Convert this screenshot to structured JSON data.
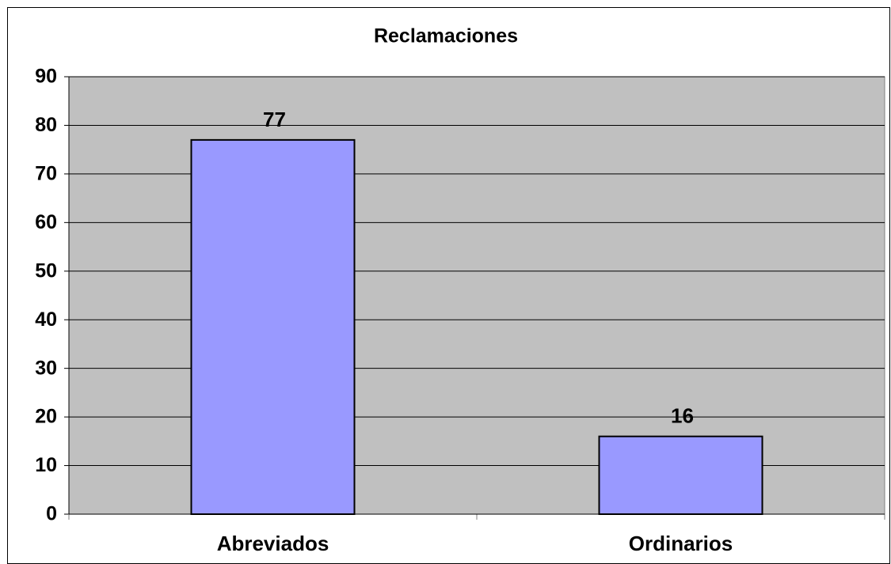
{
  "chart_data": {
    "type": "bar",
    "title": "Reclamaciones",
    "categories": [
      "Abreviados",
      "Ordinarios"
    ],
    "values": [
      77,
      16
    ],
    "color": "#9999ff",
    "ylim": [
      0,
      90
    ],
    "yticks": [
      0,
      10,
      20,
      30,
      40,
      50,
      60,
      70,
      80,
      90
    ],
    "grid": true
  }
}
